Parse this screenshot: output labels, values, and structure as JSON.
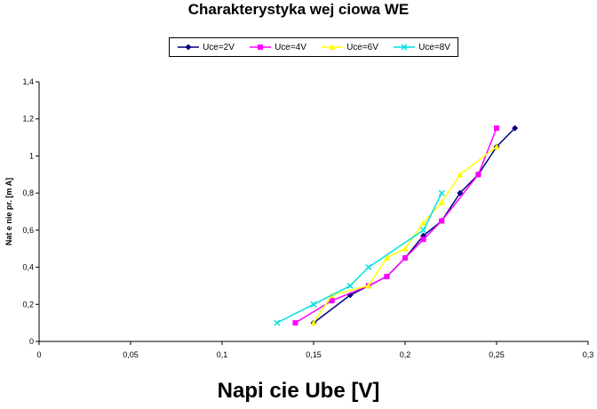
{
  "chart_data": {
    "type": "line",
    "title": "Charakterystyka wej  ciowa WE",
    "xlabel": "Napi  cie Ube [V]",
    "ylabel": "Nat    e nie pr. [m A]",
    "xlim": [
      0,
      0.3
    ],
    "ylim": [
      0,
      1.4
    ],
    "x_ticks": [
      0,
      0.05,
      0.1,
      0.15,
      0.2,
      0.25,
      0.3
    ],
    "x_tick_labels": [
      "0",
      "0,05",
      "0,1",
      "0,15",
      "0,2",
      "0,25",
      "0,3"
    ],
    "y_ticks": [
      0,
      0.2,
      0.4,
      0.6,
      0.8,
      1,
      1.2,
      1.4
    ],
    "y_tick_labels": [
      "0",
      "0,2",
      "0,4",
      "0,6",
      "0,8",
      "1",
      "1,2",
      "1,4"
    ],
    "grid": false,
    "legend_position": "top",
    "series": [
      {
        "name": "Uce=2V",
        "color": "#000080",
        "marker": "diamond",
        "points": [
          [
            0.15,
            0.1
          ],
          [
            0.17,
            0.25
          ],
          [
            0.19,
            0.35
          ],
          [
            0.2,
            0.45
          ],
          [
            0.21,
            0.57
          ],
          [
            0.22,
            0.65
          ],
          [
            0.23,
            0.8
          ],
          [
            0.24,
            0.9
          ],
          [
            0.25,
            1.05
          ],
          [
            0.26,
            1.15
          ]
        ]
      },
      {
        "name": "Uce=4V",
        "color": "#ff00ff",
        "marker": "square",
        "points": [
          [
            0.14,
            0.1
          ],
          [
            0.16,
            0.22
          ],
          [
            0.18,
            0.3
          ],
          [
            0.19,
            0.35
          ],
          [
            0.2,
            0.45
          ],
          [
            0.21,
            0.55
          ],
          [
            0.22,
            0.65
          ],
          [
            0.24,
            0.9
          ],
          [
            0.25,
            1.15
          ]
        ]
      },
      {
        "name": "Uce=6V",
        "color": "#ffff00",
        "marker": "triangle",
        "points": [
          [
            0.15,
            0.1
          ],
          [
            0.16,
            0.25
          ],
          [
            0.18,
            0.3
          ],
          [
            0.19,
            0.45
          ],
          [
            0.2,
            0.5
          ],
          [
            0.21,
            0.64
          ],
          [
            0.22,
            0.75
          ],
          [
            0.23,
            0.9
          ],
          [
            0.25,
            1.05
          ]
        ]
      },
      {
        "name": "Uce=8V",
        "color": "#00e0e0",
        "marker": "x",
        "points": [
          [
            0.13,
            0.1
          ],
          [
            0.15,
            0.2
          ],
          [
            0.17,
            0.3
          ],
          [
            0.18,
            0.4
          ],
          [
            0.21,
            0.6
          ],
          [
            0.22,
            0.8
          ]
        ]
      }
    ]
  }
}
